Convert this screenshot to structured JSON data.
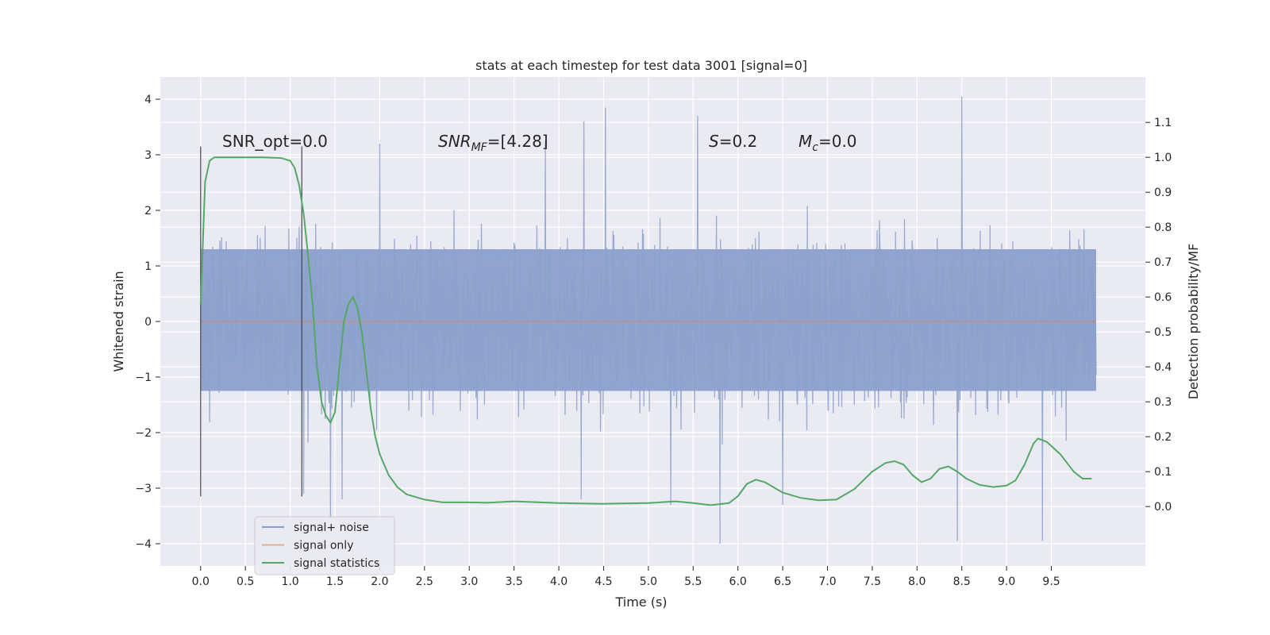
{
  "chart_data": {
    "type": "line",
    "title": "stats at each timestep for test data 3001 [signal=0]",
    "xlabel": "Time (s)",
    "ylabel": "Whitened strain",
    "y2label": "Detection probability/MF",
    "xlim": [
      -0.45,
      10.55
    ],
    "ylim": [
      -4.4,
      4.4
    ],
    "y2lim": [
      -0.17,
      1.23
    ],
    "xticks": [
      "0.0",
      "0.5",
      "1.0",
      "1.5",
      "2.0",
      "2.5",
      "3.0",
      "3.5",
      "4.0",
      "4.5",
      "5.0",
      "5.5",
      "6.0",
      "6.5",
      "7.0",
      "7.5",
      "8.0",
      "8.5",
      "9.0",
      "9.5"
    ],
    "yticks": [
      "4",
      "3",
      "2",
      "1",
      "0",
      "−1",
      "−2",
      "−3",
      "−4"
    ],
    "y2ticks": [
      "1.1",
      "1.0",
      "0.9",
      "0.8",
      "0.7",
      "0.6",
      "0.5",
      "0.4",
      "0.3",
      "0.2",
      "0.1",
      "0.0"
    ],
    "grid": true,
    "legend_position": "lower-left",
    "legend": [
      "signal+ noise",
      "signal only",
      "signal statistics"
    ],
    "colors": {
      "noise": "#8ca0cc",
      "signal_only": "#dd8452",
      "statistics": "#55a868",
      "background": "#eaeaf2",
      "grid": "#ffffff",
      "vlines": "#3a3a3a"
    },
    "annotations": [
      {
        "text": "SNR_opt=0.0"
      },
      {
        "text": "SNR",
        "sub": "MF",
        "suffix": "=[4.28]"
      },
      {
        "text": "S",
        "suffix": "=0.2"
      },
      {
        "text": "M",
        "sub": "c",
        "suffix": "=0.0"
      }
    ],
    "vertical_lines_x": [
      0.0,
      1.13
    ],
    "series": [
      {
        "name": "signal+ noise",
        "x_range": [
          0.0,
          10.0
        ],
        "core_band": [
          -1.25,
          1.3
        ],
        "typical_peaks": [
          -2.2,
          2.4
        ],
        "extremes": [
          {
            "x": 8.5,
            "y": 4.05
          },
          {
            "x": 4.52,
            "y": 3.85
          },
          {
            "x": 5.55,
            "y": 3.7
          },
          {
            "x": 4.28,
            "y": 3.6
          },
          {
            "x": 3.85,
            "y": 3.25
          },
          {
            "x": 2.0,
            "y": 3.2
          },
          {
            "x": 5.8,
            "y": -4.0
          },
          {
            "x": 8.45,
            "y": -3.95
          },
          {
            "x": 9.4,
            "y": -3.95
          },
          {
            "x": 1.45,
            "y": -3.55
          },
          {
            "x": 1.58,
            "y": -3.2
          },
          {
            "x": 4.25,
            "y": -3.2
          },
          {
            "x": 5.25,
            "y": -3.3
          },
          {
            "x": 6.5,
            "y": -3.3
          },
          {
            "x": 1.15,
            "y": -3.1
          }
        ]
      },
      {
        "name": "signal only",
        "x": [
          0.0,
          10.0
        ],
        "y": [
          0.0,
          0.0
        ]
      },
      {
        "name": "signal statistics",
        "axis": "right",
        "x": [
          0.0,
          0.05,
          0.1,
          0.15,
          0.2,
          0.3,
          0.5,
          0.7,
          0.9,
          1.0,
          1.05,
          1.1,
          1.15,
          1.2,
          1.25,
          1.3,
          1.35,
          1.4,
          1.45,
          1.5,
          1.55,
          1.6,
          1.65,
          1.7,
          1.75,
          1.8,
          1.85,
          1.9,
          1.95,
          2.0,
          2.1,
          2.2,
          2.3,
          2.5,
          2.7,
          3.0,
          3.2,
          3.5,
          4.0,
          4.5,
          5.0,
          5.3,
          5.5,
          5.7,
          5.9,
          6.0,
          6.1,
          6.2,
          6.3,
          6.5,
          6.7,
          6.9,
          7.1,
          7.3,
          7.5,
          7.65,
          7.75,
          7.85,
          7.95,
          8.05,
          8.15,
          8.25,
          8.35,
          8.45,
          8.55,
          8.7,
          8.85,
          9.0,
          9.1,
          9.2,
          9.3,
          9.35,
          9.45,
          9.6,
          9.75,
          9.85,
          9.95
        ],
        "y": [
          0.58,
          0.93,
          0.99,
          1.0,
          1.0,
          1.0,
          1.0,
          1.0,
          0.998,
          0.99,
          0.97,
          0.92,
          0.84,
          0.72,
          0.58,
          0.4,
          0.3,
          0.26,
          0.24,
          0.27,
          0.4,
          0.53,
          0.58,
          0.6,
          0.57,
          0.5,
          0.39,
          0.28,
          0.2,
          0.15,
          0.09,
          0.055,
          0.035,
          0.02,
          0.012,
          0.012,
          0.011,
          0.015,
          0.01,
          0.008,
          0.01,
          0.015,
          0.01,
          0.004,
          0.01,
          0.03,
          0.065,
          0.077,
          0.07,
          0.04,
          0.025,
          0.018,
          0.02,
          0.05,
          0.1,
          0.125,
          0.13,
          0.12,
          0.09,
          0.07,
          0.08,
          0.108,
          0.115,
          0.1,
          0.08,
          0.062,
          0.056,
          0.06,
          0.075,
          0.12,
          0.18,
          0.195,
          0.185,
          0.15,
          0.1,
          0.08,
          0.08
        ]
      }
    ]
  }
}
